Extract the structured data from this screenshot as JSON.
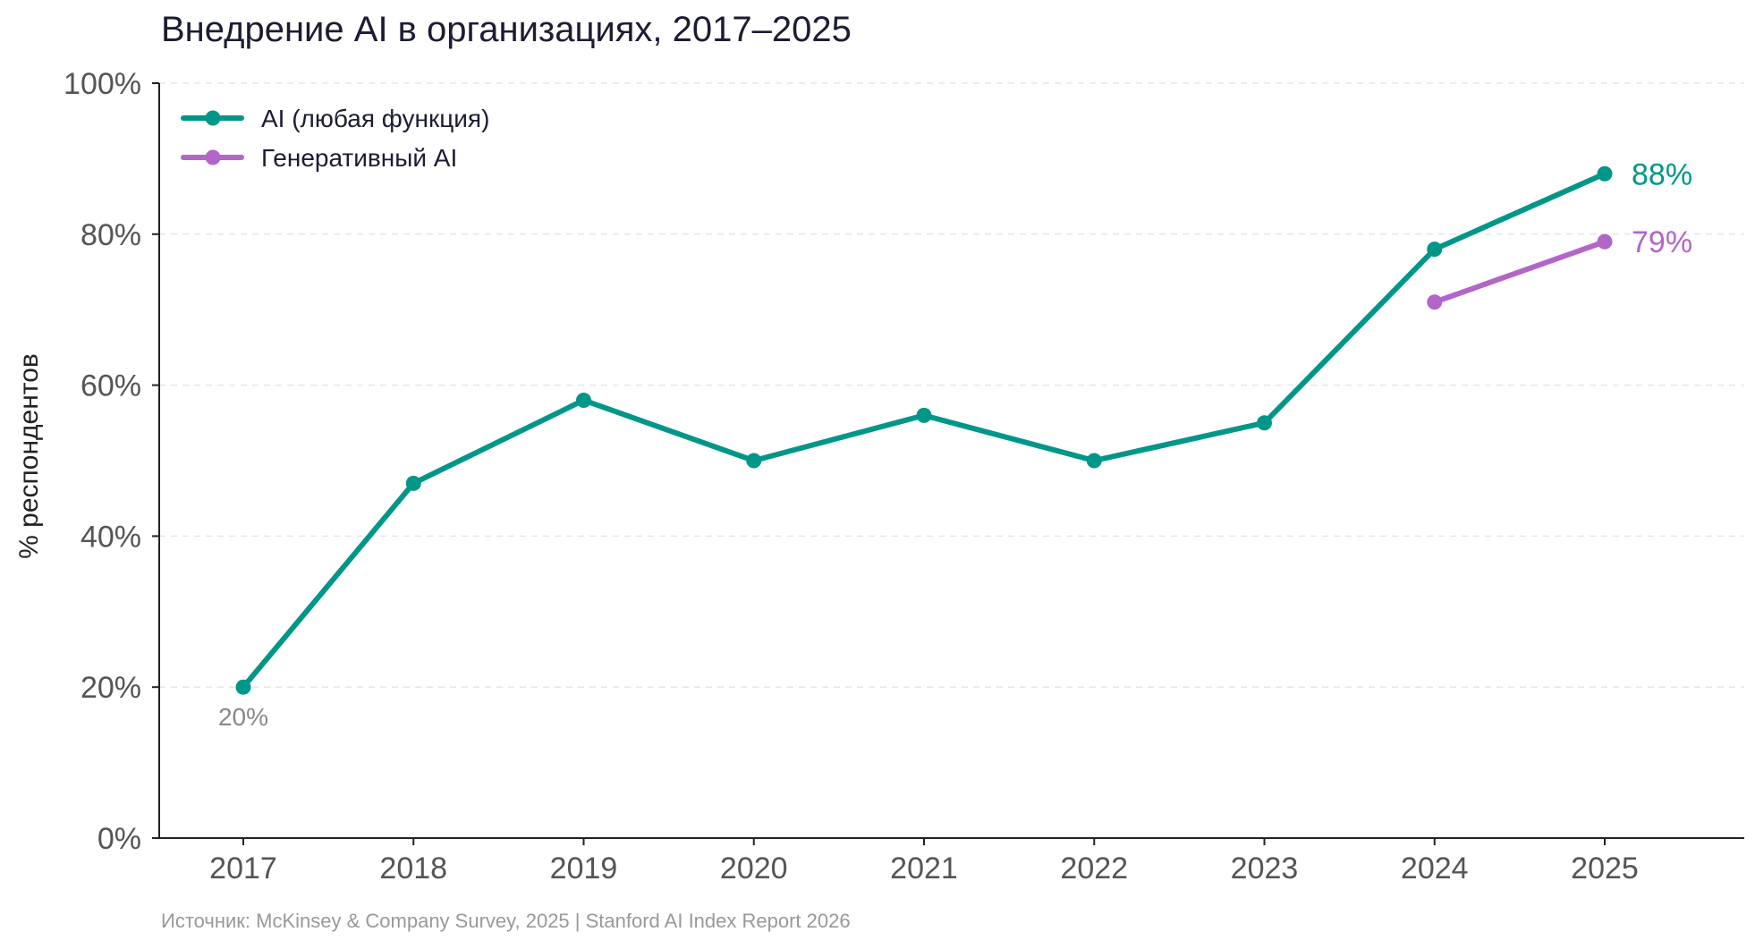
{
  "chart_data": {
    "type": "line",
    "title": "Внедрение AI в организациях, 2017–2025",
    "ylabel": "% респондентов",
    "xlabel": "",
    "x": [
      "2017",
      "2018",
      "2019",
      "2020",
      "2021",
      "2022",
      "2023",
      "2024",
      "2025"
    ],
    "ylim": [
      0,
      100
    ],
    "yticks": [
      "0%",
      "20%",
      "40%",
      "60%",
      "80%",
      "100%"
    ],
    "ytick_values": [
      0,
      20,
      40,
      60,
      80,
      100
    ],
    "grid": "horizontal dashed",
    "legend_position": "top-left",
    "series": [
      {
        "name": "AI (любая функция)",
        "color": "#009688",
        "x": [
          "2017",
          "2018",
          "2019",
          "2020",
          "2021",
          "2022",
          "2023",
          "2024",
          "2025"
        ],
        "values": [
          20,
          47,
          58,
          50,
          56,
          50,
          55,
          78,
          88
        ]
      },
      {
        "name": "Генеративный AI",
        "color": "#b266c8",
        "x": [
          "2024",
          "2025"
        ],
        "values": [
          71,
          79
        ]
      }
    ],
    "annotations": [
      {
        "text": "20%",
        "series": 0,
        "x": "2017",
        "color": "#888888"
      },
      {
        "text": "88%",
        "series": 0,
        "x": "2025",
        "color": "#009688"
      },
      {
        "text": "79%",
        "series": 1,
        "x": "2025",
        "color": "#b266c8"
      }
    ],
    "source": "Источник: McKinsey & Company Survey, 2025 | Stanford AI Index Report 2026"
  }
}
